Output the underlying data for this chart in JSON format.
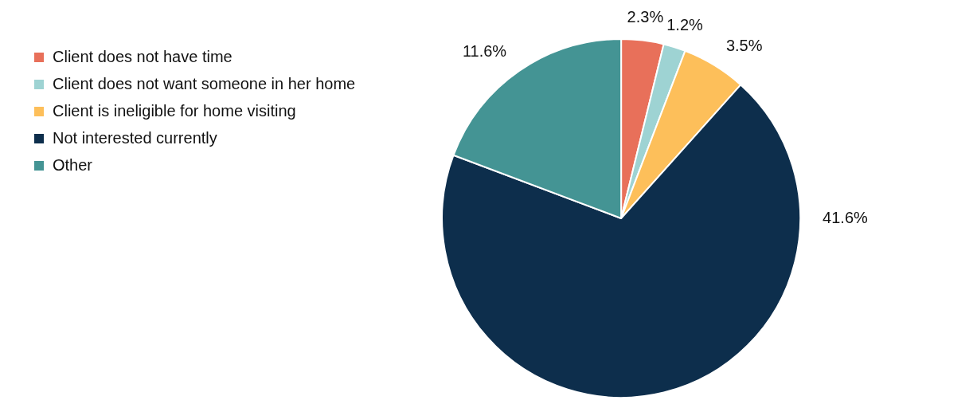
{
  "chart_data": {
    "type": "pie",
    "categories": [
      "Client does not have time",
      "Client does not want someone in her home",
      "Client is ineligible for home visiting",
      "Not interested currently",
      "Other"
    ],
    "values": [
      2.3,
      1.2,
      3.5,
      41.6,
      11.6
    ],
    "value_labels": [
      "2.3%",
      "1.2%",
      "3.5%",
      "41.6%",
      "11.6%"
    ],
    "colors": [
      "#e8705a",
      "#9ed3d3",
      "#fdbf5a",
      "#0d2e4c",
      "#449494"
    ],
    "legend": "top left"
  }
}
